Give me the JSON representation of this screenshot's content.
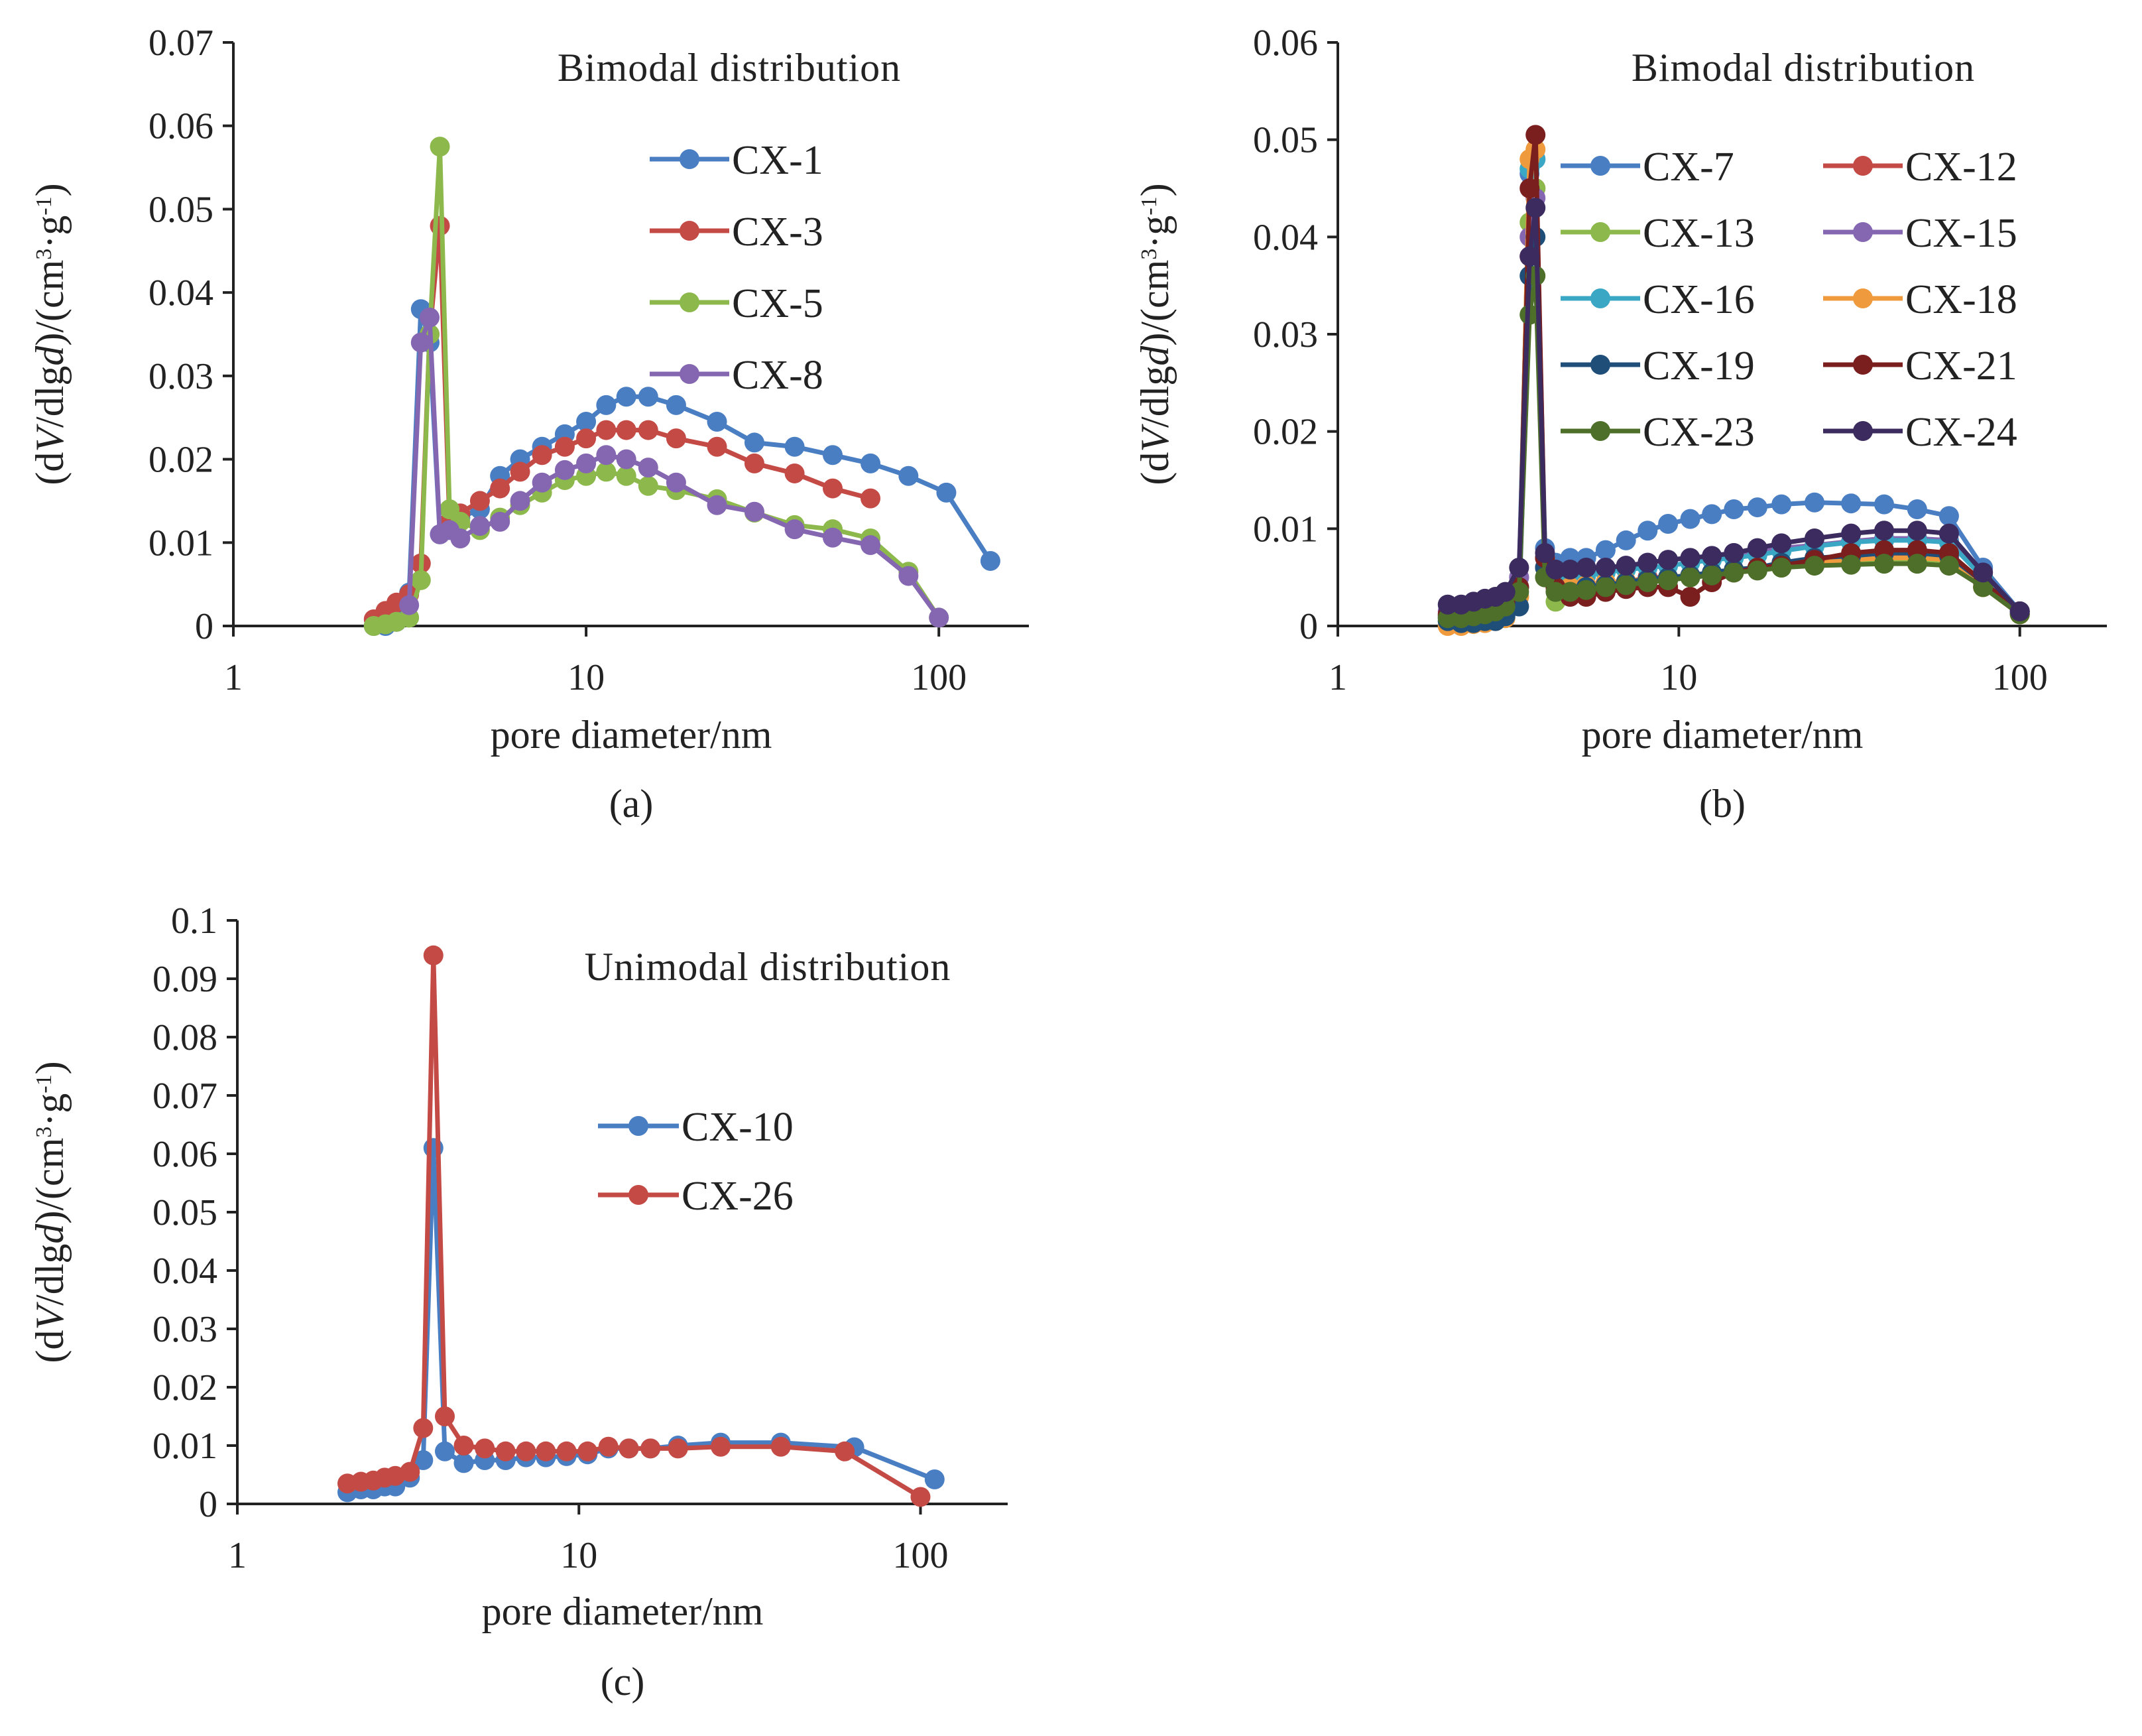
{
  "figure": {
    "panel_labels": [
      "(a)",
      "(b)",
      "(c)"
    ]
  },
  "chart_data": [
    {
      "id": "a",
      "type": "line",
      "title": "",
      "annotation": "Bimodal distribution",
      "xlabel": "pore diameter/nm",
      "ylabel": "(dV/dlgd)/(cm³·g⁻¹)",
      "ylabel_parts": [
        "(d",
        "V",
        "/dlg",
        "d",
        ")/(cm",
        "3",
        "·g",
        "-1",
        ")"
      ],
      "xscale": "log",
      "xlim": [
        1,
        180
      ],
      "ylim": [
        0,
        0.07
      ],
      "xticks": [
        1,
        10,
        100
      ],
      "xtick_labels": [
        "1",
        "10",
        "100"
      ],
      "yticks": [
        0,
        0.01,
        0.02,
        0.03,
        0.04,
        0.05,
        0.06,
        0.07
      ],
      "ytick_labels": [
        "0",
        "0.01",
        "0.02",
        "0.03",
        "0.04",
        "0.05",
        "0.06",
        "0.07"
      ],
      "legend_position": "top-right",
      "series": [
        {
          "name": "CX-1",
          "color": "#4a7ec3",
          "x": [
            2.5,
            2.7,
            2.9,
            3.15,
            3.4,
            3.6,
            3.85,
            4.1,
            4.4,
            5.0,
            5.7,
            6.5,
            7.5,
            8.7,
            10,
            11.4,
            13,
            15,
            18,
            23.5,
            30,
            39,
            50,
            64,
            82,
            105,
            140
          ],
          "y": [
            0.0,
            0.0,
            0.0005,
            0.004,
            0.038,
            0.034,
            0.011,
            0.0125,
            0.013,
            0.014,
            0.018,
            0.02,
            0.0215,
            0.023,
            0.0245,
            0.0265,
            0.0275,
            0.0275,
            0.0265,
            0.0245,
            0.022,
            0.0215,
            0.0205,
            0.0195,
            0.018,
            0.016,
            0.0078
          ]
        },
        {
          "name": "CX-3",
          "color": "#c44a45",
          "x": [
            2.5,
            2.7,
            2.9,
            3.15,
            3.4,
            3.6,
            3.85,
            4.1,
            4.4,
            5.0,
            5.7,
            6.5,
            7.5,
            8.7,
            10,
            11.4,
            13,
            15,
            18,
            23.5,
            30,
            39,
            50,
            64
          ],
          "y": [
            0.0008,
            0.0018,
            0.0028,
            0.0038,
            0.0075,
            0.035,
            0.048,
            0.0125,
            0.0135,
            0.015,
            0.0165,
            0.0185,
            0.0205,
            0.0215,
            0.0225,
            0.0235,
            0.0235,
            0.0235,
            0.0225,
            0.0215,
            0.0195,
            0.0183,
            0.0165,
            0.0153
          ]
        },
        {
          "name": "CX-5",
          "color": "#8db94c",
          "x": [
            2.5,
            2.7,
            2.9,
            3.15,
            3.4,
            3.6,
            3.85,
            4.1,
            4.4,
            5.0,
            5.7,
            6.5,
            7.5,
            8.7,
            10,
            11.4,
            13,
            15,
            18,
            23.5,
            30,
            39,
            50,
            64,
            82,
            100
          ],
          "y": [
            0.0,
            0.0002,
            0.0005,
            0.001,
            0.0055,
            0.035,
            0.0575,
            0.014,
            0.0125,
            0.0115,
            0.013,
            0.0145,
            0.016,
            0.0175,
            0.018,
            0.0185,
            0.018,
            0.0168,
            0.0163,
            0.0152,
            0.0136,
            0.0121,
            0.0116,
            0.0105,
            0.0065,
            0.001
          ]
        },
        {
          "name": "CX-8",
          "color": "#8567b1",
          "x": [
            3.15,
            3.4,
            3.6,
            3.85,
            4.1,
            4.4,
            5.0,
            5.7,
            6.5,
            7.5,
            8.7,
            10,
            11.4,
            13,
            15,
            18,
            23.5,
            30,
            39,
            50,
            64,
            82,
            100
          ],
          "y": [
            0.0025,
            0.034,
            0.037,
            0.011,
            0.0115,
            0.0105,
            0.012,
            0.0125,
            0.015,
            0.0172,
            0.0187,
            0.0195,
            0.0205,
            0.02,
            0.019,
            0.0172,
            0.0145,
            0.0137,
            0.0116,
            0.0106,
            0.0097,
            0.006,
            0.001
          ]
        }
      ]
    },
    {
      "id": "b",
      "type": "line",
      "title": "",
      "annotation": "Bimodal distribution",
      "xlabel": "pore diameter/nm",
      "ylabel": "(dV/dlgd)/(cm³·g⁻¹)",
      "ylabel_parts": [
        "(d",
        "V",
        "/dlg",
        "d",
        ")/(cm",
        "3",
        "·g",
        "-1",
        ")"
      ],
      "xscale": "log",
      "xlim": [
        1,
        180
      ],
      "ylim": [
        0,
        0.06
      ],
      "xticks": [
        1,
        10,
        100
      ],
      "xtick_labels": [
        "1",
        "10",
        "100"
      ],
      "yticks": [
        0,
        0.01,
        0.02,
        0.03,
        0.04,
        0.05,
        0.06
      ],
      "ytick_labels": [
        "0",
        "0.01",
        "0.02",
        "0.03",
        "0.04",
        "0.05",
        "0.06"
      ],
      "legend_position": "top-right",
      "x": [
        2.1,
        2.3,
        2.5,
        2.7,
        2.9,
        3.1,
        3.4,
        3.65,
        3.8,
        4.05,
        4.35,
        4.8,
        5.35,
        6.1,
        7.0,
        8.1,
        9.3,
        10.8,
        12.5,
        14.5,
        17,
        20,
        25,
        32,
        40,
        50,
        62,
        78,
        100
      ],
      "series": [
        {
          "name": "CX-7",
          "color": "#4a7ec3",
          "y": [
            0.0008,
            0.0005,
            0.0003,
            0.0005,
            0.001,
            0.0015,
            0.005,
            0.0465,
            0.048,
            0.008,
            0.0065,
            0.007,
            0.007,
            0.0078,
            0.0088,
            0.0098,
            0.0105,
            0.011,
            0.0115,
            0.012,
            0.0122,
            0.0125,
            0.0127,
            0.0126,
            0.0125,
            0.012,
            0.0113,
            0.006,
            0.0015
          ]
        },
        {
          "name": "CX-12",
          "color": "#c44a45",
          "y": [
            0.001,
            0.001,
            0.0012,
            0.0015,
            0.002,
            0.0025,
            0.004,
            0.038,
            0.045,
            0.006,
            0.004,
            0.004,
            0.0042,
            0.0045,
            0.0045,
            0.005,
            0.005,
            0.0052,
            0.0055,
            0.0058,
            0.006,
            0.0063,
            0.0067,
            0.007,
            0.0072,
            0.0072,
            0.007,
            0.004,
            0.0012
          ]
        },
        {
          "name": "CX-13",
          "color": "#8db94c",
          "y": [
            0.0005,
            0.0005,
            0.0005,
            0.0008,
            0.001,
            0.0015,
            0.003,
            0.0415,
            0.045,
            0.005,
            0.0025,
            0.0035,
            0.0035,
            0.004,
            0.0042,
            0.0045,
            0.0048,
            0.005,
            0.0052,
            0.0055,
            0.0058,
            0.006,
            0.0063,
            0.0065,
            0.0066,
            0.0066,
            0.0063,
            0.004,
            0.0012
          ]
        },
        {
          "name": "CX-15",
          "color": "#8567b1",
          "y": [
            0.0015,
            0.0015,
            0.0018,
            0.002,
            0.0025,
            0.003,
            0.005,
            0.04,
            0.044,
            0.007,
            0.0055,
            0.0055,
            0.0057,
            0.006,
            0.0062,
            0.0065,
            0.0068,
            0.007,
            0.0072,
            0.0075,
            0.0077,
            0.008,
            0.0083,
            0.0087,
            0.009,
            0.009,
            0.0088,
            0.005,
            0.0015
          ]
        },
        {
          "name": "CX-16",
          "color": "#3aa7c4",
          "y": [
            0.001,
            0.001,
            0.001,
            0.0012,
            0.0015,
            0.002,
            0.004,
            0.047,
            0.048,
            0.007,
            0.005,
            0.005,
            0.0052,
            0.0055,
            0.0058,
            0.006,
            0.0062,
            0.0065,
            0.0068,
            0.007,
            0.0073,
            0.0077,
            0.0082,
            0.0086,
            0.0088,
            0.0088,
            0.0086,
            0.005,
            0.0015
          ]
        },
        {
          "name": "CX-18",
          "color": "#ef9a3c",
          "y": [
            0.0,
            0.0,
            0.0002,
            0.0003,
            0.0005,
            0.0008,
            0.003,
            0.048,
            0.049,
            0.006,
            0.004,
            0.004,
            0.0042,
            0.0045,
            0.0046,
            0.0048,
            0.005,
            0.0052,
            0.0055,
            0.0058,
            0.006,
            0.0063,
            0.0066,
            0.0068,
            0.007,
            0.007,
            0.0068,
            0.004,
            0.0012
          ]
        },
        {
          "name": "CX-19",
          "color": "#1f4e79",
          "y": [
            0.0005,
            0.0003,
            0.0003,
            0.0005,
            0.0005,
            0.001,
            0.002,
            0.036,
            0.04,
            0.006,
            0.004,
            0.0035,
            0.004,
            0.0042,
            0.0045,
            0.0048,
            0.005,
            0.0052,
            0.0055,
            0.0058,
            0.006,
            0.0065,
            0.007,
            0.0072,
            0.0075,
            0.0075,
            0.0072,
            0.0045,
            0.0013
          ]
        },
        {
          "name": "CX-21",
          "color": "#7a1e1e",
          "y": [
            0.0012,
            0.0012,
            0.0015,
            0.0018,
            0.002,
            0.0025,
            0.004,
            0.045,
            0.0505,
            0.007,
            0.004,
            0.003,
            0.003,
            0.0035,
            0.0038,
            0.004,
            0.004,
            0.003,
            0.0045,
            0.0055,
            0.006,
            0.0062,
            0.0068,
            0.0075,
            0.0078,
            0.0078,
            0.0075,
            0.0045,
            0.0015
          ]
        },
        {
          "name": "CX-23",
          "color": "#4e6f2a",
          "y": [
            0.0008,
            0.0008,
            0.001,
            0.0012,
            0.0015,
            0.002,
            0.0035,
            0.032,
            0.036,
            0.005,
            0.0035,
            0.0035,
            0.0037,
            0.004,
            0.0042,
            0.0045,
            0.0047,
            0.005,
            0.0052,
            0.0055,
            0.0057,
            0.006,
            0.0062,
            0.0063,
            0.0064,
            0.0064,
            0.0062,
            0.004,
            0.0012
          ]
        },
        {
          "name": "CX-24",
          "color": "#3b2b5e",
          "y": [
            0.0022,
            0.0022,
            0.0025,
            0.0028,
            0.003,
            0.0035,
            0.006,
            0.038,
            0.043,
            0.0075,
            0.0058,
            0.0058,
            0.006,
            0.006,
            0.0062,
            0.0065,
            0.0068,
            0.007,
            0.0072,
            0.0075,
            0.008,
            0.0085,
            0.009,
            0.0095,
            0.0098,
            0.0098,
            0.0095,
            0.0055,
            0.0015
          ]
        }
      ]
    },
    {
      "id": "c",
      "type": "line",
      "title": "",
      "annotation": "Unimodal distribution",
      "xlabel": "pore diameter/nm",
      "ylabel": "(dV/dlgd)/(cm³·g⁻¹)",
      "ylabel_parts": [
        "(d",
        "V",
        "/dlg",
        "d",
        ")/(cm",
        "3",
        "·g",
        "-1",
        ")"
      ],
      "xscale": "log",
      "xlim": [
        1,
        180
      ],
      "ylim": [
        0,
        0.1
      ],
      "xticks": [
        1,
        10,
        100
      ],
      "xtick_labels": [
        "1",
        "10",
        "100"
      ],
      "yticks": [
        0,
        0.01,
        0.02,
        0.03,
        0.04,
        0.05,
        0.06,
        0.07,
        0.08,
        0.09,
        0.1
      ],
      "ytick_labels": [
        "0",
        "0.01",
        "0.02",
        "0.03",
        "0.04",
        "0.05",
        "0.06",
        "0.07",
        "0.08",
        "0.09",
        "0.1"
      ],
      "legend_position": "center-right",
      "series": [
        {
          "name": "CX-10",
          "color": "#4a7ec3",
          "x": [
            2.1,
            2.3,
            2.5,
            2.7,
            2.9,
            3.2,
            3.5,
            3.75,
            4.05,
            4.6,
            5.3,
            6.1,
            7.0,
            8.0,
            9.2,
            10.6,
            12.2,
            14.0,
            16.2,
            19.5,
            26,
            39,
            64,
            110
          ],
          "y": [
            0.002,
            0.0025,
            0.0025,
            0.003,
            0.003,
            0.0045,
            0.0075,
            0.061,
            0.009,
            0.007,
            0.0075,
            0.0075,
            0.008,
            0.008,
            0.0082,
            0.0085,
            0.0095,
            0.0095,
            0.0095,
            0.01,
            0.0105,
            0.0105,
            0.0097,
            0.0042
          ]
        },
        {
          "name": "CX-26",
          "color": "#c44a45",
          "x": [
            2.1,
            2.3,
            2.5,
            2.7,
            2.9,
            3.2,
            3.5,
            3.75,
            4.05,
            4.6,
            5.3,
            6.1,
            7.0,
            8.0,
            9.2,
            10.6,
            12.2,
            14.0,
            16.2,
            19.5,
            26,
            39,
            60,
            100
          ],
          "y": [
            0.0035,
            0.0038,
            0.004,
            0.0045,
            0.0048,
            0.0055,
            0.013,
            0.094,
            0.015,
            0.01,
            0.0095,
            0.009,
            0.009,
            0.009,
            0.009,
            0.009,
            0.0098,
            0.0095,
            0.0095,
            0.0095,
            0.0098,
            0.0098,
            0.009,
            0.0012
          ]
        }
      ]
    }
  ]
}
